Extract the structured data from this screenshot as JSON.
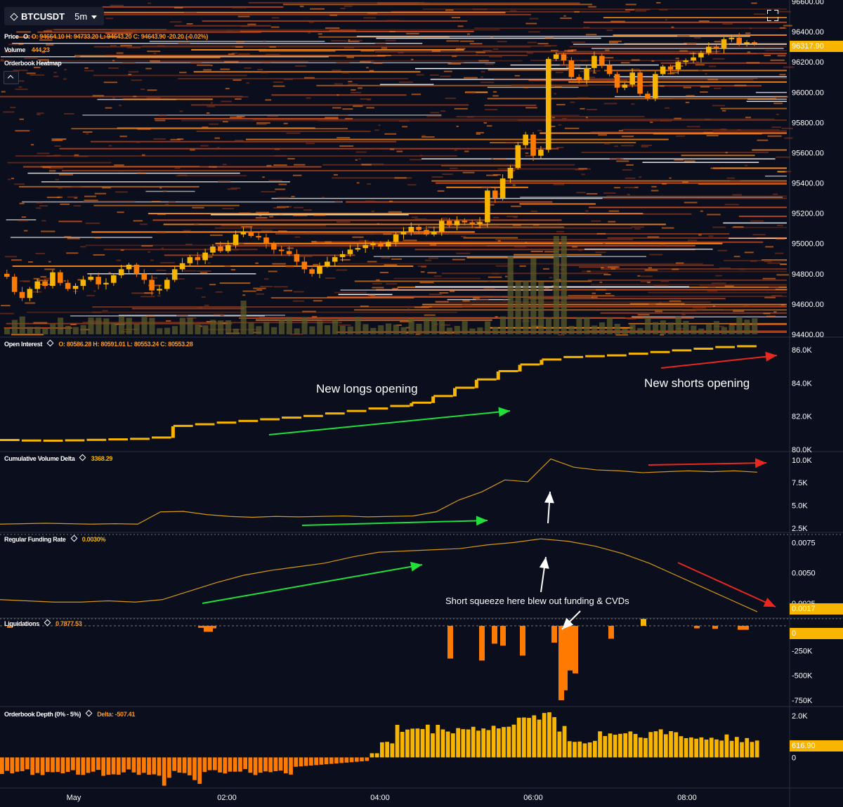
{
  "header": {
    "symbol": "BTCUSDT",
    "timeframe": "5m",
    "price_label": "Price",
    "open": "O: 94664.10",
    "high": "H: 94733.20",
    "low": "L: 94643.20",
    "close": "C: 94643.90",
    "change": "-20.20 (-0.02%)",
    "volume_label": "Volume",
    "volume_value": "444.23",
    "heatmap_label": "Orderbook Heatmap"
  },
  "panes": {
    "oi": {
      "label": "Open Interest",
      "open": "O: 80586.28",
      "high": "H: 80591.01",
      "low": "L: 80553.24",
      "close": "C: 80553.28"
    },
    "cvd": {
      "label": "Cumulative Volume Delta",
      "value": "3368.29"
    },
    "funding": {
      "label": "Regular Funding Rate",
      "value": "0.0030%",
      "tag": "0.0017"
    },
    "liq": {
      "label": "Liquidations",
      "value": "0 7877.53",
      "tag": "0"
    },
    "depth": {
      "label": "Orderbook Depth (0% - 5%)",
      "value": "Delta: -507.41",
      "tag": "616.90"
    }
  },
  "price_tag": "96317.90",
  "annotations": {
    "longs": "New longs opening",
    "shorts": "New shorts opening",
    "squeeze": "Short squeeze here blew out funding & CVDs"
  },
  "chart_data": [
    {
      "type": "candlestick",
      "pane": "price",
      "y_ticks": [
        "96600.00",
        "96400.00",
        "96200.00",
        "96000.00",
        "95800.00",
        "95600.00",
        "95400.00",
        "95200.00",
        "95000.00",
        "94800.00",
        "94600.00",
        "94400.00"
      ],
      "ylim": [
        94400,
        96600
      ],
      "x_ticks": [
        "May",
        "02:00",
        "04:00",
        "06:00",
        "08:00"
      ],
      "closes": [
        94780,
        94680,
        94640,
        94700,
        94750,
        94720,
        94810,
        94740,
        94700,
        94720,
        94760,
        94780,
        94730,
        94740,
        94790,
        94830,
        94860,
        94800,
        94760,
        94690,
        94700,
        94760,
        94830,
        94870,
        94910,
        94890,
        94940,
        94980,
        94950,
        94990,
        95060,
        95080,
        95050,
        95040,
        95000,
        94960,
        94950,
        94930,
        94880,
        94830,
        94800,
        94850,
        94880,
        94910,
        94930,
        94960,
        94970,
        94990,
        95000,
        94980,
        95010,
        95060,
        95080,
        95110,
        95090,
        95060,
        95080,
        95150,
        95120,
        95150,
        95140,
        95130,
        95140,
        95350,
        95300,
        95430,
        95500,
        95650,
        95720,
        95580,
        95620,
        96220,
        96250,
        96210,
        96100,
        96080,
        96160,
        96240,
        96180,
        96120,
        96030,
        96050,
        96130,
        95990,
        95960,
        96120,
        96170,
        96150,
        96200,
        96210,
        96230,
        96260,
        96300,
        96290,
        96350,
        96360,
        96320,
        96330,
        96320
      ],
      "volume": "bars near bottom, spikes around 05:50 and 06:10"
    },
    {
      "type": "line",
      "pane": "open_interest",
      "y_ticks": [
        "86.0K",
        "84.0K",
        "82.0K",
        "80.0K"
      ],
      "ylim": [
        80000,
        86600
      ],
      "values": [
        80550,
        80520,
        80510,
        80530,
        80560,
        80590,
        80620,
        80700,
        81400,
        81500,
        81600,
        81700,
        81800,
        81900,
        82000,
        82150,
        82300,
        82450,
        82600,
        82800,
        83200,
        83700,
        84200,
        84700,
        85100,
        85400,
        85550,
        85600,
        85650,
        85750,
        85850,
        85950,
        86050,
        86150,
        86200
      ]
    },
    {
      "type": "line",
      "pane": "cvd",
      "y_ticks": [
        "10.0K",
        "7.5K",
        "5.0K",
        "2.5K"
      ],
      "ylim": [
        2200,
        10600
      ],
      "values": [
        2950,
        3000,
        3050,
        3000,
        2950,
        3000,
        2950,
        4300,
        4350,
        4000,
        3800,
        3700,
        3800,
        3750,
        3800,
        3850,
        3750,
        3800,
        3850,
        4300,
        5600,
        6500,
        7800,
        7600,
        10100,
        9200,
        8900,
        8800,
        8600,
        8700,
        8800,
        8700,
        8800,
        8650
      ]
    },
    {
      "type": "line",
      "pane": "funding",
      "y_ticks": [
        "0.0075",
        "0.0050",
        "0.0025"
      ],
      "ylim": [
        0.0014,
        0.0081
      ],
      "values": [
        0.0028,
        0.0027,
        0.0026,
        0.0026,
        0.0027,
        0.0026,
        0.0028,
        0.0035,
        0.0042,
        0.0048,
        0.0052,
        0.0055,
        0.0058,
        0.0063,
        0.0067,
        0.0068,
        0.0069,
        0.007,
        0.0073,
        0.0075,
        0.0078,
        0.0076,
        0.0072,
        0.0066,
        0.0058,
        0.0048,
        0.0038,
        0.0028,
        0.0018
      ]
    },
    {
      "type": "bar",
      "pane": "liquidations",
      "y_ticks": [
        "-250K",
        "-500K",
        "-750K"
      ],
      "ylim": [
        -800000,
        50000
      ],
      "values": [
        -20000,
        -20000,
        -60000,
        -60000,
        -25000,
        -330000,
        -350000,
        -180000,
        -200000,
        -300000,
        -170000,
        -750000,
        -650000,
        -450000,
        -480000,
        -130000,
        70000,
        -25000,
        -30000,
        -40000,
        -40000
      ]
    },
    {
      "type": "bar",
      "pane": "orderbook_depth",
      "y_ticks": [
        "2.0K",
        "0"
      ],
      "ylim": [
        -1400,
        2300
      ],
      "values": "negative (about -500 to -1100) until about 02:40, then positive around 1000-2100"
    }
  ]
}
